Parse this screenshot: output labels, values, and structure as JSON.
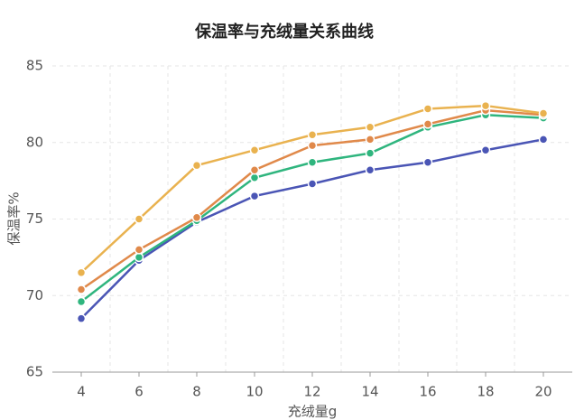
{
  "chart_data": {
    "type": "line",
    "title": "保温率与充绒量关系曲线",
    "x_label": "充绒量g",
    "y_label": "保温率%",
    "x": [
      4,
      6,
      8,
      10,
      12,
      14,
      16,
      18,
      20
    ],
    "series": [
      {
        "color": "#4a55b5",
        "values": [
          68.5,
          72.3,
          74.8,
          76.5,
          77.3,
          78.2,
          78.7,
          79.5,
          80.2
        ]
      },
      {
        "color": "#2fb57e",
        "values": [
          69.6,
          72.5,
          74.9,
          77.7,
          78.7,
          79.3,
          81.0,
          81.8,
          81.6
        ]
      },
      {
        "color": "#e0894a",
        "values": [
          70.4,
          73.0,
          75.1,
          78.2,
          79.8,
          80.2,
          81.2,
          82.1,
          81.8
        ]
      },
      {
        "color": "#e9b24f",
        "values": [
          71.5,
          75.0,
          78.5,
          79.5,
          80.5,
          81.0,
          82.2,
          82.4,
          81.9
        ]
      }
    ],
    "xlim": [
      3,
      21
    ],
    "xticks": [
      4,
      6,
      8,
      10,
      12,
      14,
      16,
      18,
      20
    ],
    "ylim": [
      65,
      85
    ],
    "yticks": [
      65,
      70,
      75,
      80,
      85
    ],
    "grid": true
  }
}
